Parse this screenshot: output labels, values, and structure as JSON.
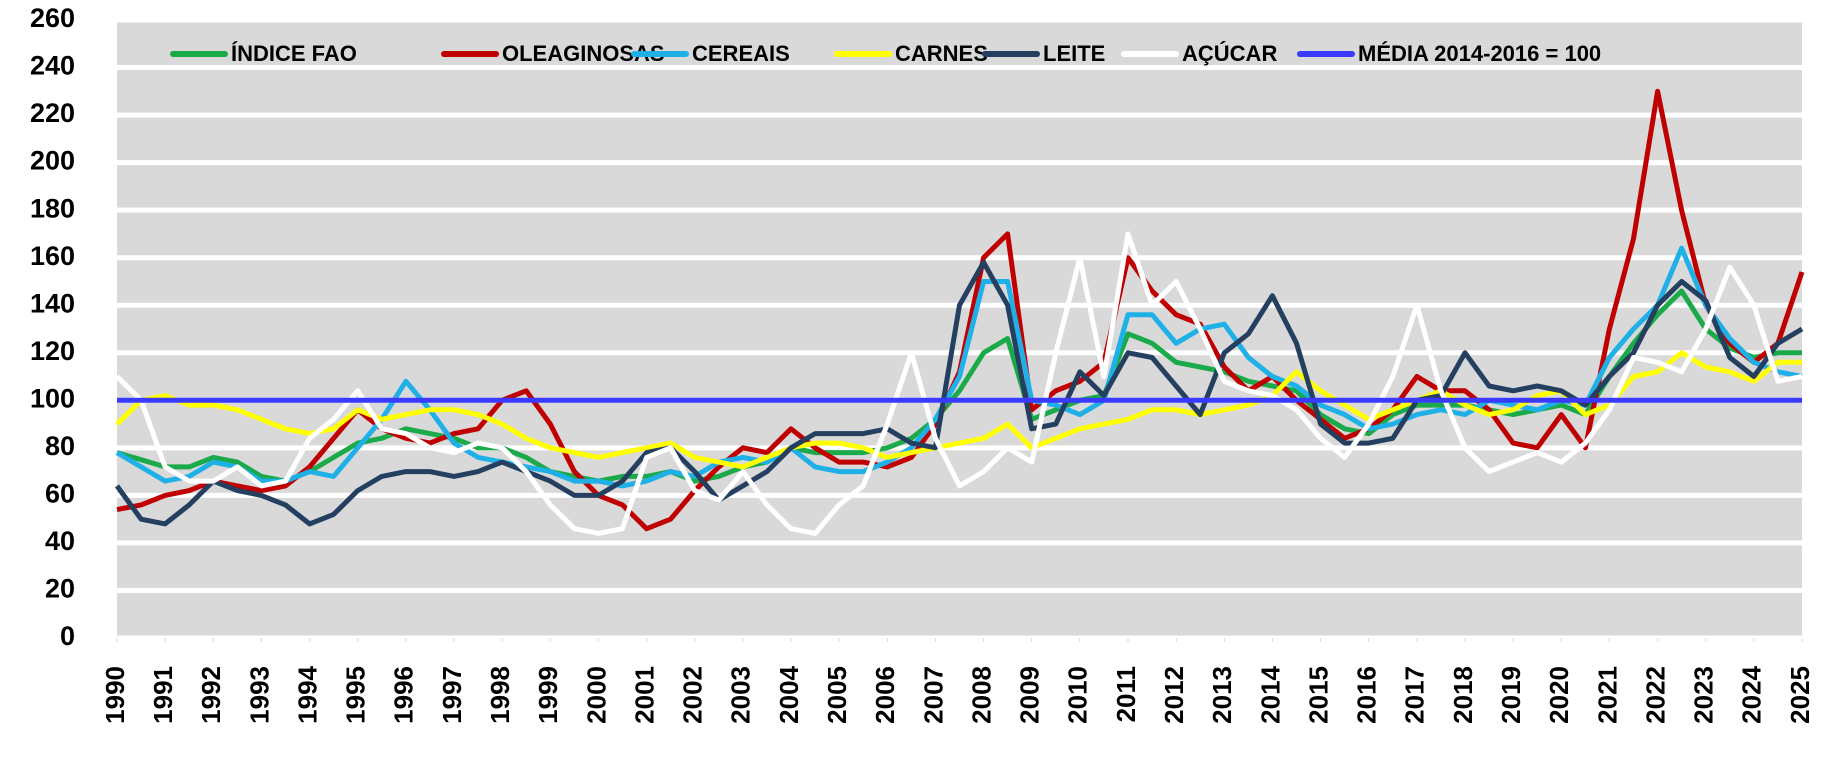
{
  "chart_data": {
    "type": "line",
    "x": [
      1990,
      1990.5,
      1991,
      1991.5,
      1992,
      1992.5,
      1993,
      1993.5,
      1994,
      1994.5,
      1995,
      1995.5,
      1996,
      1996.5,
      1997,
      1997.5,
      1998,
      1998.5,
      1999,
      1999.5,
      2000,
      2000.5,
      2001,
      2001.5,
      2002,
      2002.5,
      2003,
      2003.5,
      2004,
      2004.5,
      2005,
      2005.5,
      2006,
      2006.5,
      2007,
      2007.5,
      2008,
      2008.5,
      2009,
      2009.5,
      2010,
      2010.5,
      2011,
      2011.5,
      2012,
      2012.5,
      2013,
      2013.5,
      2014,
      2014.5,
      2015,
      2015.5,
      2016,
      2016.5,
      2017,
      2017.5,
      2018,
      2018.5,
      2019,
      2019.5,
      2020,
      2020.5,
      2021,
      2021.5,
      2022,
      2022.5,
      2023,
      2023.5,
      2024,
      2024.5,
      2025
    ],
    "xlim": [
      1990,
      2025
    ],
    "xticks": [
      1990,
      1991,
      1992,
      1993,
      1994,
      1995,
      1996,
      1997,
      1998,
      1999,
      2000,
      2001,
      2002,
      2003,
      2004,
      2005,
      2006,
      2007,
      2008,
      2009,
      2010,
      2011,
      2012,
      2013,
      2014,
      2015,
      2016,
      2017,
      2018,
      2019,
      2020,
      2021,
      2022,
      2023,
      2024,
      2025
    ],
    "ylim": [
      0,
      260
    ],
    "yticks": [
      0,
      20,
      40,
      60,
      80,
      100,
      120,
      140,
      160,
      180,
      200,
      220,
      240,
      260
    ],
    "grid": true,
    "series": [
      {
        "name": "ÍNDICE FAO",
        "color": "#1aaa4a",
        "values": [
          78,
          75,
          72,
          72,
          76,
          74,
          68,
          66,
          70,
          76,
          82,
          84,
          88,
          86,
          84,
          80,
          80,
          76,
          70,
          68,
          66,
          68,
          68,
          70,
          66,
          68,
          72,
          74,
          80,
          78,
          78,
          78,
          80,
          84,
          92,
          104,
          120,
          126,
          92,
          96,
          100,
          102,
          128,
          124,
          116,
          114,
          112,
          108,
          106,
          104,
          94,
          88,
          86,
          94,
          98,
          98,
          98,
          96,
          94,
          96,
          98,
          94,
          110,
          124,
          136,
          146,
          130,
          122,
          118,
          120,
          120
        ]
      },
      {
        "name": "OLEAGINOSAS",
        "color": "#c00000",
        "values": [
          54,
          56,
          60,
          62,
          66,
          64,
          62,
          64,
          72,
          84,
          96,
          88,
          84,
          82,
          86,
          88,
          100,
          104,
          90,
          70,
          60,
          56,
          46,
          50,
          62,
          72,
          80,
          78,
          88,
          80,
          74,
          74,
          72,
          76,
          90,
          112,
          160,
          170,
          96,
          104,
          108,
          116,
          160,
          146,
          136,
          132,
          114,
          104,
          110,
          100,
          92,
          84,
          88,
          96,
          110,
          104,
          104,
          96,
          82,
          80,
          94,
          80,
          130,
          168,
          230,
          180,
          140,
          124,
          116,
          124,
          154
        ]
      },
      {
        "name": "CEREAIS",
        "color": "#1fb0e8",
        "values": [
          78,
          72,
          66,
          68,
          74,
          72,
          66,
          66,
          70,
          68,
          80,
          92,
          108,
          96,
          82,
          76,
          74,
          72,
          70,
          66,
          66,
          64,
          66,
          70,
          68,
          74,
          76,
          74,
          80,
          72,
          70,
          70,
          74,
          80,
          92,
          110,
          150,
          150,
          100,
          98,
          94,
          100,
          136,
          136,
          124,
          130,
          132,
          118,
          110,
          106,
          98,
          94,
          88,
          90,
          94,
          96,
          94,
          100,
          98,
          96,
          100,
          98,
          118,
          130,
          140,
          164,
          140,
          126,
          116,
          112,
          110
        ]
      },
      {
        "name": "CARNES",
        "color": "#ffff00",
        "values": [
          90,
          100,
          102,
          98,
          98,
          96,
          92,
          88,
          86,
          88,
          96,
          92,
          94,
          96,
          96,
          94,
          90,
          84,
          80,
          78,
          76,
          78,
          80,
          82,
          76,
          74,
          72,
          76,
          80,
          82,
          82,
          80,
          76,
          78,
          80,
          82,
          84,
          90,
          80,
          84,
          88,
          90,
          92,
          96,
          96,
          94,
          96,
          98,
          102,
          112,
          104,
          98,
          92,
          96,
          100,
          104,
          98,
          94,
          96,
          102,
          104,
          94,
          98,
          110,
          112,
          120,
          114,
          112,
          108,
          116,
          116
        ]
      },
      {
        "name": "LEITE",
        "color": "#243f60",
        "values": [
          64,
          50,
          48,
          56,
          66,
          62,
          60,
          56,
          48,
          52,
          62,
          68,
          70,
          70,
          68,
          70,
          74,
          70,
          66,
          60,
          60,
          66,
          78,
          80,
          70,
          58,
          64,
          70,
          80,
          86,
          86,
          86,
          88,
          82,
          80,
          140,
          158,
          140,
          88,
          90,
          112,
          102,
          120,
          118,
          106,
          94,
          120,
          128,
          144,
          124,
          90,
          82,
          82,
          84,
          100,
          102,
          120,
          106,
          104,
          106,
          104,
          98,
          110,
          120,
          140,
          150,
          142,
          118,
          110,
          124,
          130
        ]
      },
      {
        "name": "AÇÚCAR",
        "color": "#ffffff",
        "values": [
          110,
          100,
          72,
          66,
          66,
          72,
          64,
          66,
          84,
          92,
          104,
          88,
          86,
          80,
          78,
          82,
          80,
          70,
          56,
          46,
          44,
          46,
          76,
          80,
          62,
          58,
          70,
          56,
          46,
          44,
          56,
          64,
          90,
          120,
          84,
          64,
          70,
          80,
          74,
          120,
          160,
          110,
          170,
          140,
          150,
          130,
          108,
          104,
          102,
          96,
          84,
          76,
          90,
          110,
          140,
          104,
          80,
          70,
          74,
          78,
          74,
          82,
          96,
          118,
          116,
          112,
          130,
          156,
          140,
          108,
          110
        ]
      },
      {
        "name": "MÉDIA 2014-2016 = 100",
        "color": "#3a3aff",
        "values": [
          100,
          100,
          100,
          100,
          100,
          100,
          100,
          100,
          100,
          100,
          100,
          100,
          100,
          100,
          100,
          100,
          100,
          100,
          100,
          100,
          100,
          100,
          100,
          100,
          100,
          100,
          100,
          100,
          100,
          100,
          100,
          100,
          100,
          100,
          100,
          100,
          100,
          100,
          100,
          100,
          100,
          100,
          100,
          100,
          100,
          100,
          100,
          100,
          100,
          100,
          100,
          100,
          100,
          100,
          100,
          100,
          100,
          100,
          100,
          100,
          100,
          100,
          100,
          100,
          100,
          100,
          100,
          100,
          100,
          100,
          100
        ]
      }
    ]
  }
}
